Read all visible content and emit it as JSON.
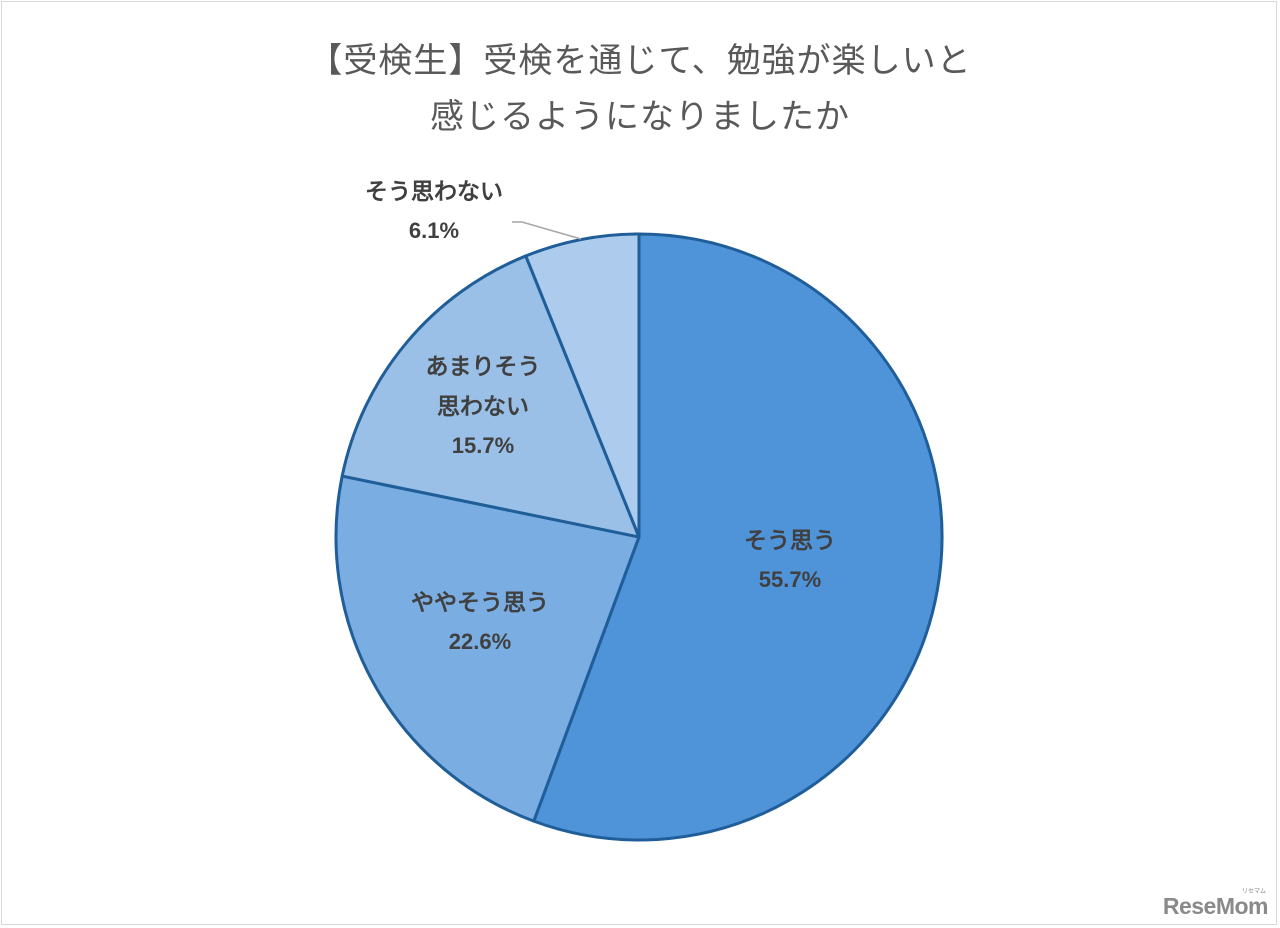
{
  "title": {
    "line1": "【受検生】受検を通じて、勉強が楽しいと",
    "line2": "感じるようになりましたか"
  },
  "colors": {
    "border": "#1f5e99",
    "slice_1": "#4f93d9",
    "slice_2": "#7aade2",
    "slice_3": "#9ac0e8",
    "slice_4": "#adcbec",
    "label_text": "#404040",
    "title_text": "#595959",
    "leader_line": "#a6a6a6"
  },
  "labels": {
    "s1": {
      "name": "そう思う",
      "pct": "55.7%"
    },
    "s2": {
      "name": "ややそう思う",
      "pct": "22.6%"
    },
    "s3": {
      "name_line1": "あまりそう",
      "name_line2": "思わない",
      "pct": "15.7%"
    },
    "s4": {
      "name": "そう思わない",
      "pct": "6.1%"
    }
  },
  "logo": {
    "text": "ReseMom",
    "kana": "リセマム"
  },
  "chart_data": {
    "type": "pie",
    "title": "【受検生】受検を通じて、勉強が楽しいと感じるようになりましたか",
    "categories": [
      "そう思う",
      "ややそう思う",
      "あまりそう思わない",
      "そう思わない"
    ],
    "values": [
      55.7,
      22.6,
      15.7,
      6.1
    ],
    "unit": "%",
    "start_angle": "12 o'clock",
    "direction": "clockwise",
    "data_labels": [
      "そう思う 55.7%",
      "ややそう思う 22.6%",
      "あまりそう思わない 15.7%",
      "そう思わない 6.1%"
    ],
    "legend": "none (labels on slices)"
  }
}
